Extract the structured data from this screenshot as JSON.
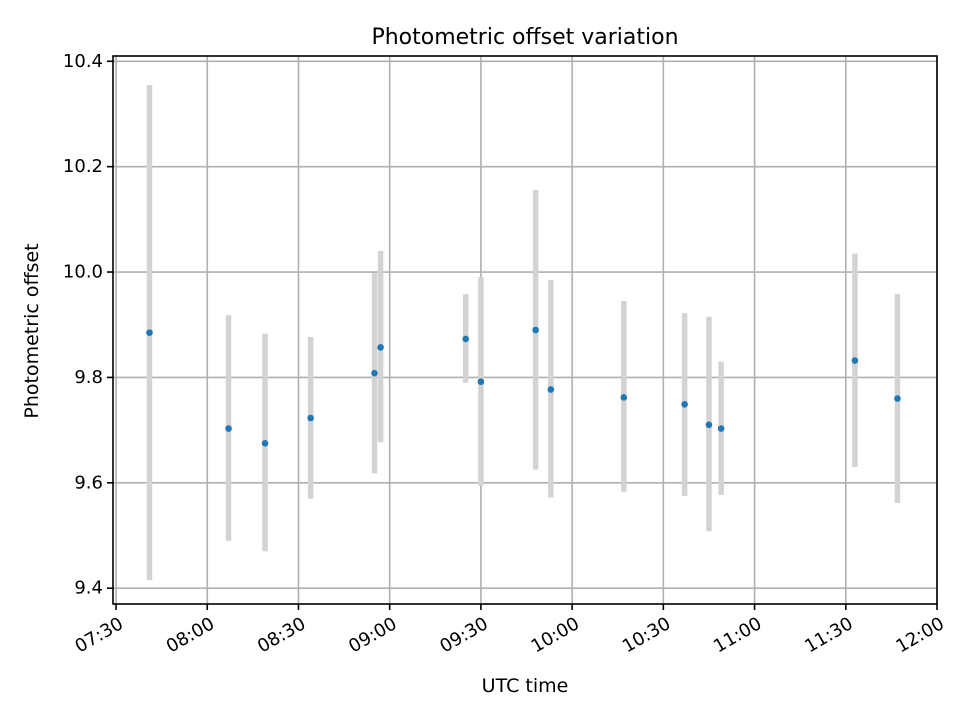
{
  "chart_data": {
    "type": "scatter",
    "title": "Photometric offset variation",
    "xlabel": "UTC time",
    "ylabel": "Photometric offset",
    "x_axis": {
      "type": "time",
      "xlim": [
        "07:29",
        "12:00"
      ],
      "ticks": [
        "07:30",
        "08:00",
        "08:30",
        "09:00",
        "09:30",
        "10:00",
        "10:30",
        "11:00",
        "11:30",
        "12:00"
      ]
    },
    "y_axis": {
      "ylim": [
        9.37,
        10.41
      ],
      "ticks": [
        "9.4",
        "9.6",
        "9.8",
        "10.0",
        "10.2",
        "10.4"
      ]
    },
    "grid": true,
    "marker_color": "#1f77b4",
    "errorbar_color": "#d3d3d3",
    "series": [
      {
        "points": [
          {
            "t": "07:41",
            "y": 9.885,
            "err_low": 9.415,
            "err_high": 10.355
          },
          {
            "t": "08:07",
            "y": 9.703,
            "err_low": 9.49,
            "err_high": 9.918
          },
          {
            "t": "08:19",
            "y": 9.675,
            "err_low": 9.47,
            "err_high": 9.883
          },
          {
            "t": "08:34",
            "y": 9.723,
            "err_low": 9.57,
            "err_high": 9.877
          },
          {
            "t": "08:55",
            "y": 9.808,
            "err_low": 9.618,
            "err_high": 9.998
          },
          {
            "t": "08:57",
            "y": 9.857,
            "err_low": 9.677,
            "err_high": 10.04
          },
          {
            "t": "09:25",
            "y": 9.873,
            "err_low": 9.79,
            "err_high": 9.958
          },
          {
            "t": "09:30",
            "y": 9.792,
            "err_low": 9.595,
            "err_high": 9.99
          },
          {
            "t": "09:48",
            "y": 9.89,
            "err_low": 9.625,
            "err_high": 10.156
          },
          {
            "t": "09:53",
            "y": 9.777,
            "err_low": 9.572,
            "err_high": 9.985
          },
          {
            "t": "10:17",
            "y": 9.762,
            "err_low": 9.583,
            "err_high": 9.945
          },
          {
            "t": "10:37",
            "y": 9.749,
            "err_low": 9.575,
            "err_high": 9.922
          },
          {
            "t": "10:45",
            "y": 9.71,
            "err_low": 9.508,
            "err_high": 9.915
          },
          {
            "t": "10:49",
            "y": 9.703,
            "err_low": 9.577,
            "err_high": 9.83
          },
          {
            "t": "11:33",
            "y": 9.832,
            "err_low": 9.63,
            "err_high": 10.035
          },
          {
            "t": "11:47",
            "y": 9.76,
            "err_low": 9.562,
            "err_high": 9.958
          }
        ]
      }
    ]
  }
}
